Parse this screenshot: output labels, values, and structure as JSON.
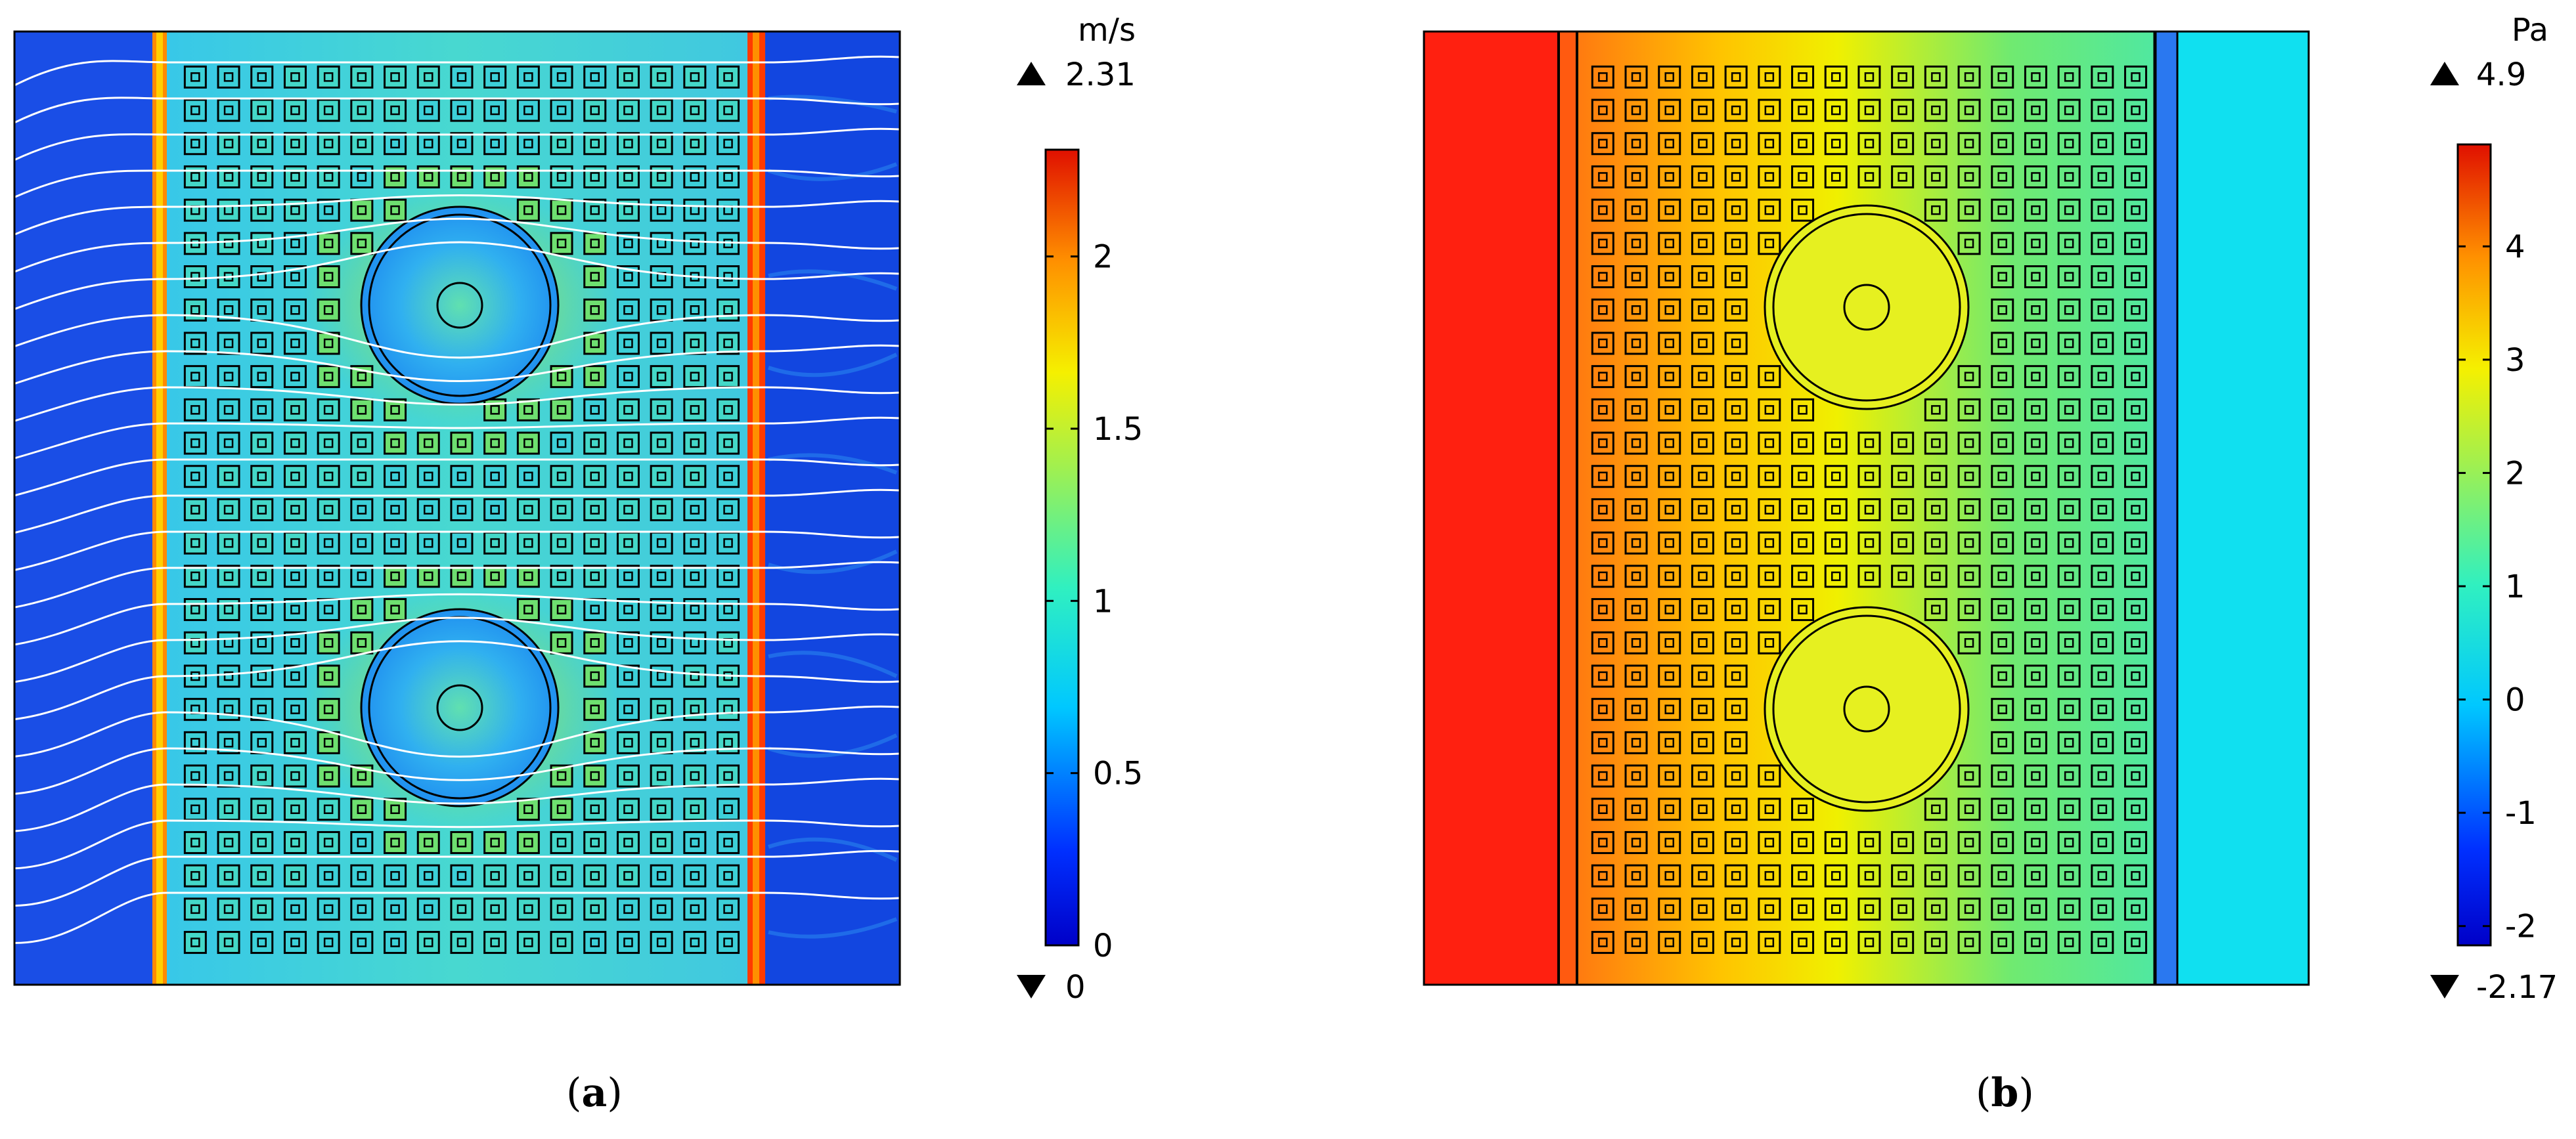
{
  "panels": [
    {
      "id": "a",
      "quantity": "velocity",
      "colorbar": {
        "unit": "m/s",
        "max_marker": "2.31",
        "min_marker": "0",
        "min": 0,
        "max": 2.31,
        "ticks": [
          {
            "value": 0,
            "label": "0"
          },
          {
            "value": 0.5,
            "label": "0.5"
          },
          {
            "value": 1,
            "label": "1"
          },
          {
            "value": 1.5,
            "label": "1.5"
          },
          {
            "value": 2,
            "label": "2"
          }
        ],
        "colormap": "rainbow"
      },
      "caption": {
        "open": "(",
        "letter": "a",
        "close": ")"
      }
    },
    {
      "id": "b",
      "quantity": "pressure",
      "colorbar": {
        "unit": "Pa",
        "max_marker": "4.9",
        "min_marker": "-2.17",
        "min": -2.17,
        "max": 4.9,
        "ticks": [
          {
            "value": -2,
            "label": "-2"
          },
          {
            "value": -1,
            "label": "-1"
          },
          {
            "value": 0,
            "label": "0"
          },
          {
            "value": 1,
            "label": "1"
          },
          {
            "value": 2,
            "label": "2"
          },
          {
            "value": 3,
            "label": "3"
          },
          {
            "value": 4,
            "label": "4"
          }
        ],
        "colormap": "rainbow"
      },
      "caption": {
        "open": "(",
        "letter": "b",
        "close": ")"
      }
    }
  ],
  "colors": {
    "blue_low": "#1f44e0",
    "cyan": "#35e0d8",
    "green": "#52e08a",
    "yellow": "#f2f20a",
    "orange": "#ff9a1a",
    "red": "#ff1a10"
  }
}
